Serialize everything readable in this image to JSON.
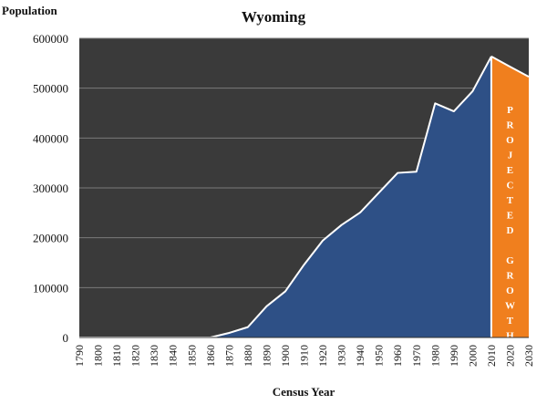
{
  "chart_data": {
    "type": "area",
    "title": "Wyoming",
    "xlabel": "Census Year",
    "ylabel": "Population",
    "ylim": [
      0,
      600000
    ],
    "yticks": [
      "0",
      "100000",
      "200000",
      "300000",
      "400000",
      "500000",
      "600000"
    ],
    "xticks": [
      "1790",
      "1800",
      "1810",
      "1820",
      "1830",
      "1840",
      "1850",
      "1860",
      "1870",
      "1880",
      "1890",
      "1900",
      "1910",
      "1920",
      "1930",
      "1940",
      "1950",
      "1960",
      "1970",
      "1980",
      "1990",
      "2000",
      "2010",
      "2020",
      "2030"
    ],
    "grid": true,
    "series": [
      {
        "x": [
          1790,
          1800,
          1810,
          1820,
          1830,
          1840,
          1850,
          1860,
          1870,
          1880,
          1890,
          1900,
          1910,
          1920,
          1930,
          1940,
          1950,
          1960,
          1970,
          1980,
          1990,
          2000,
          2010
        ],
        "values": [
          0,
          0,
          0,
          0,
          0,
          0,
          0,
          0,
          9118,
          20789,
          62555,
          92531,
          145965,
          194402,
          225565,
          250742,
          290529,
          330066,
          332416,
          469557,
          453588,
          493782,
          563626
        ],
        "color": "#2e5086"
      },
      {
        "x": [
          2010,
          2020,
          2030
        ],
        "values": [
          563626,
          543000,
          523000
        ],
        "color": "#f07f1e"
      }
    ],
    "annotations": [
      {
        "text": "PROJECTED"
      },
      {
        "text": "GROWTH"
      }
    ],
    "colors": {
      "plot_bg": "#3a3a3a",
      "gridline": "#7a7a7a",
      "outline": "#ffffff"
    }
  }
}
